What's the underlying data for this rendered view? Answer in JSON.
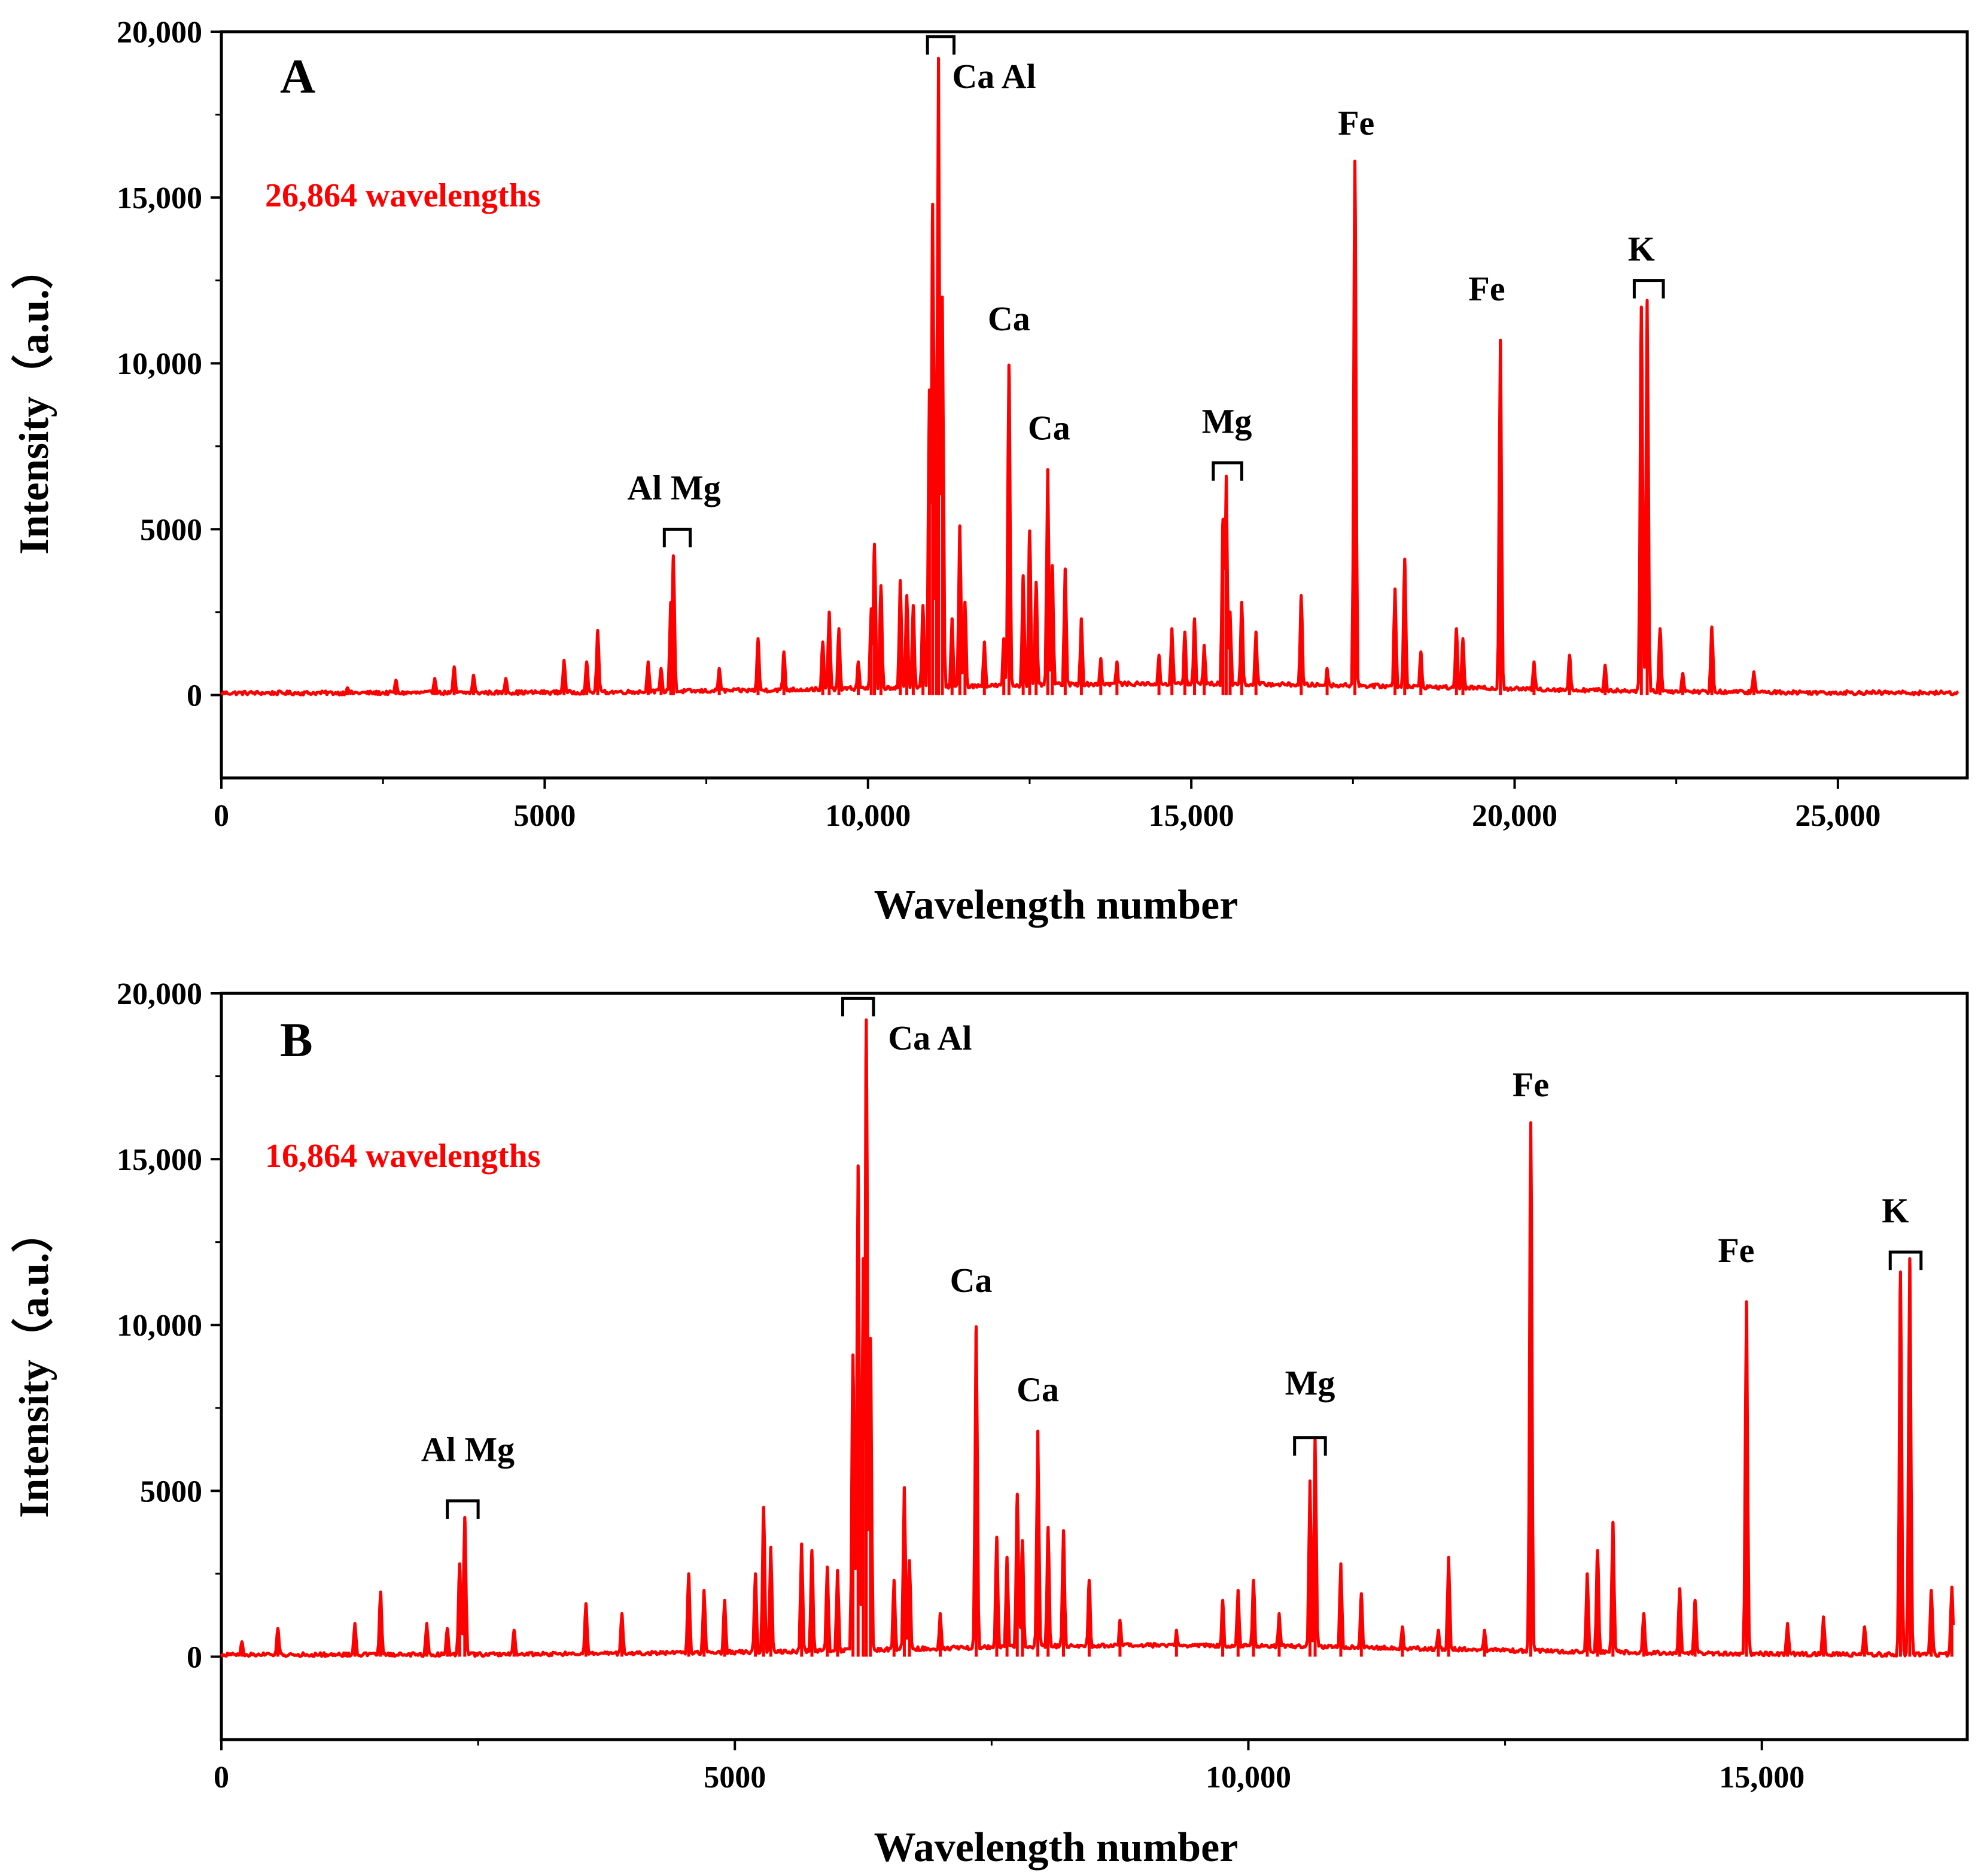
{
  "colors": {
    "spectrum": "#ff0000",
    "axis": "#000000",
    "background": "#ffffff"
  },
  "chart_data": [
    {
      "panel": "A",
      "type": "line",
      "subtitle": "26,864 wavelengths",
      "xlabel": "Wavelength number",
      "ylabel": "Intensity（a.u.）",
      "xlim": [
        0,
        27000
      ],
      "ylim": [
        -2500,
        20000
      ],
      "x_ticks": [
        0,
        5000,
        10000,
        15000,
        20000,
        25000
      ],
      "x_tick_labels": [
        "0",
        "5000",
        "10,000",
        "15,000",
        "20,000",
        "25,000"
      ],
      "y_ticks": [
        0,
        5000,
        10000,
        15000,
        20000
      ],
      "y_tick_labels": [
        "0",
        "5000",
        "10,000",
        "15,000",
        "20,000"
      ],
      "series_end": 26864,
      "peaks": [
        [
          1950,
          220
        ],
        [
          2700,
          450
        ],
        [
          3300,
          500
        ],
        [
          3600,
          850
        ],
        [
          3900,
          600
        ],
        [
          4400,
          500
        ],
        [
          5300,
          1050
        ],
        [
          5650,
          1000
        ],
        [
          5820,
          1950
        ],
        [
          6600,
          1000
        ],
        [
          6800,
          800
        ],
        [
          6950,
          2800
        ],
        [
          6990,
          4200
        ],
        [
          7700,
          800
        ],
        [
          8300,
          1700
        ],
        [
          8700,
          1300
        ],
        [
          9300,
          1600
        ],
        [
          9400,
          2500
        ],
        [
          9550,
          2000
        ],
        [
          9850,
          1000
        ],
        [
          10050,
          2600
        ],
        [
          10100,
          4550
        ],
        [
          10200,
          3300
        ],
        [
          10500,
          3450
        ],
        [
          10600,
          3000
        ],
        [
          10700,
          2700
        ],
        [
          10850,
          2700
        ],
        [
          10950,
          9200
        ],
        [
          11000,
          14800
        ],
        [
          11060,
          9000
        ],
        [
          11090,
          19200
        ],
        [
          11150,
          12000
        ],
        [
          11300,
          2300
        ],
        [
          11420,
          5100
        ],
        [
          11500,
          2800
        ],
        [
          11800,
          1600
        ],
        [
          12100,
          1700
        ],
        [
          12180,
          9950
        ],
        [
          12400,
          3600
        ],
        [
          12500,
          4950
        ],
        [
          12600,
          3400
        ],
        [
          12780,
          6800
        ],
        [
          12850,
          3900
        ],
        [
          13050,
          3800
        ],
        [
          13300,
          2300
        ],
        [
          13600,
          1100
        ],
        [
          13850,
          1000
        ],
        [
          14500,
          1200
        ],
        [
          14700,
          2000
        ],
        [
          14900,
          1900
        ],
        [
          15050,
          2300
        ],
        [
          15200,
          1500
        ],
        [
          15490,
          5300
        ],
        [
          15540,
          6600
        ],
        [
          15600,
          2500
        ],
        [
          15780,
          2800
        ],
        [
          16000,
          1900
        ],
        [
          16700,
          3000
        ],
        [
          17100,
          800
        ],
        [
          17530,
          16100
        ],
        [
          18150,
          3200
        ],
        [
          18300,
          4100
        ],
        [
          18550,
          1300
        ],
        [
          19100,
          2000
        ],
        [
          19200,
          1700
        ],
        [
          19780,
          10700
        ],
        [
          20300,
          1000
        ],
        [
          20850,
          1200
        ],
        [
          21400,
          900
        ],
        [
          21960,
          11700
        ],
        [
          22050,
          11900
        ],
        [
          22250,
          2000
        ],
        [
          22600,
          650
        ],
        [
          23050,
          2050
        ],
        [
          23700,
          700
        ]
      ],
      "annotations": [
        {
          "text": "Al Mg",
          "x": 7000,
          "y": 5900,
          "bracket": [
            6850,
            7250
          ],
          "bracket_y": 5000
        },
        {
          "text": "Ca Al",
          "x": 11950,
          "y": 18300,
          "bracket": [
            10920,
            11330
          ],
          "bracket_y": 19850
        },
        {
          "text": "Ca",
          "x": 12180,
          "y": 11000
        },
        {
          "text": "Ca",
          "x": 12800,
          "y": 7700
        },
        {
          "text": "Mg",
          "x": 15550,
          "y": 7900,
          "bracket": [
            15340,
            15780
          ],
          "bracket_y": 7000
        },
        {
          "text": "Fe",
          "x": 17550,
          "y": 16900
        },
        {
          "text": "Fe",
          "x": 19570,
          "y": 11900
        },
        {
          "text": "K",
          "x": 21960,
          "y": 13100,
          "bracket": [
            21850,
            22300
          ],
          "bracket_y": 12500
        }
      ]
    },
    {
      "panel": "B",
      "type": "line",
      "subtitle": "16,864 wavelengths",
      "xlabel": "Wavelength number",
      "ylabel": "Intensity（a.u.）",
      "xlim": [
        0,
        17000
      ],
      "ylim": [
        -2500,
        20000
      ],
      "x_ticks": [
        0,
        5000,
        10000,
        15000
      ],
      "x_tick_labels": [
        "0",
        "5000",
        "10,000",
        "15,000"
      ],
      "y_ticks": [
        0,
        5000,
        10000,
        15000,
        20000
      ],
      "y_tick_labels": [
        "0",
        "5000",
        "10,000",
        "15,000",
        "20,000"
      ],
      "series_end": 16864,
      "peaks": [
        [
          200,
          450
        ],
        [
          550,
          850
        ],
        [
          1300,
          1000
        ],
        [
          1550,
          1950
        ],
        [
          2000,
          1000
        ],
        [
          2200,
          850
        ],
        [
          2320,
          2800
        ],
        [
          2370,
          4200
        ],
        [
          2850,
          800
        ],
        [
          3550,
          1600
        ],
        [
          3900,
          1300
        ],
        [
          4550,
          2500
        ],
        [
          4700,
          2000
        ],
        [
          4900,
          1700
        ],
        [
          5200,
          2500
        ],
        [
          5280,
          4500
        ],
        [
          5350,
          3300
        ],
        [
          5650,
          3400
        ],
        [
          5750,
          3200
        ],
        [
          5900,
          2700
        ],
        [
          6000,
          2600
        ],
        [
          6150,
          9100
        ],
        [
          6200,
          14800
        ],
        [
          6250,
          12000
        ],
        [
          6280,
          19200
        ],
        [
          6320,
          9600
        ],
        [
          6550,
          2300
        ],
        [
          6650,
          5100
        ],
        [
          6700,
          2900
        ],
        [
          7000,
          1300
        ],
        [
          7350,
          9950
        ],
        [
          7550,
          3600
        ],
        [
          7650,
          3000
        ],
        [
          7750,
          4900
        ],
        [
          7800,
          3500
        ],
        [
          7950,
          6800
        ],
        [
          8050,
          3900
        ],
        [
          8200,
          3800
        ],
        [
          8450,
          2300
        ],
        [
          8750,
          1100
        ],
        [
          9300,
          800
        ],
        [
          9750,
          1700
        ],
        [
          9900,
          2000
        ],
        [
          10050,
          2300
        ],
        [
          10300,
          1300
        ],
        [
          10600,
          5300
        ],
        [
          10650,
          6600
        ],
        [
          10900,
          2800
        ],
        [
          11100,
          1900
        ],
        [
          11500,
          900
        ],
        [
          11850,
          800
        ],
        [
          11950,
          3000
        ],
        [
          12300,
          800
        ],
        [
          12750,
          16100
        ],
        [
          13300,
          2500
        ],
        [
          13400,
          3200
        ],
        [
          13550,
          4050
        ],
        [
          13850,
          1300
        ],
        [
          14200,
          2050
        ],
        [
          14350,
          1700
        ],
        [
          14850,
          10700
        ],
        [
          15250,
          1000
        ],
        [
          15600,
          1200
        ],
        [
          16000,
          900
        ],
        [
          16350,
          11600
        ],
        [
          16440,
          12000
        ],
        [
          16650,
          2000
        ],
        [
          16850,
          2100
        ]
      ],
      "annotations": [
        {
          "text": "Al Mg",
          "x": 2400,
          "y": 5900,
          "bracket": [
            2200,
            2500
          ],
          "bracket_y": 4700
        },
        {
          "text": "Ca Al",
          "x": 6900,
          "y": 18300,
          "bracket": [
            6050,
            6350
          ],
          "bracket_y": 19850
        },
        {
          "text": "Ca",
          "x": 7300,
          "y": 11000
        },
        {
          "text": "Ca",
          "x": 7950,
          "y": 7700
        },
        {
          "text": "Mg",
          "x": 10600,
          "y": 7900,
          "bracket": [
            10450,
            10750
          ],
          "bracket_y": 6600
        },
        {
          "text": "Fe",
          "x": 12750,
          "y": 16900
        },
        {
          "text": "Fe",
          "x": 14750,
          "y": 11900
        },
        {
          "text": "K",
          "x": 16300,
          "y": 13100,
          "bracket": [
            16250,
            16550
          ],
          "bracket_y": 12200
        }
      ]
    }
  ]
}
